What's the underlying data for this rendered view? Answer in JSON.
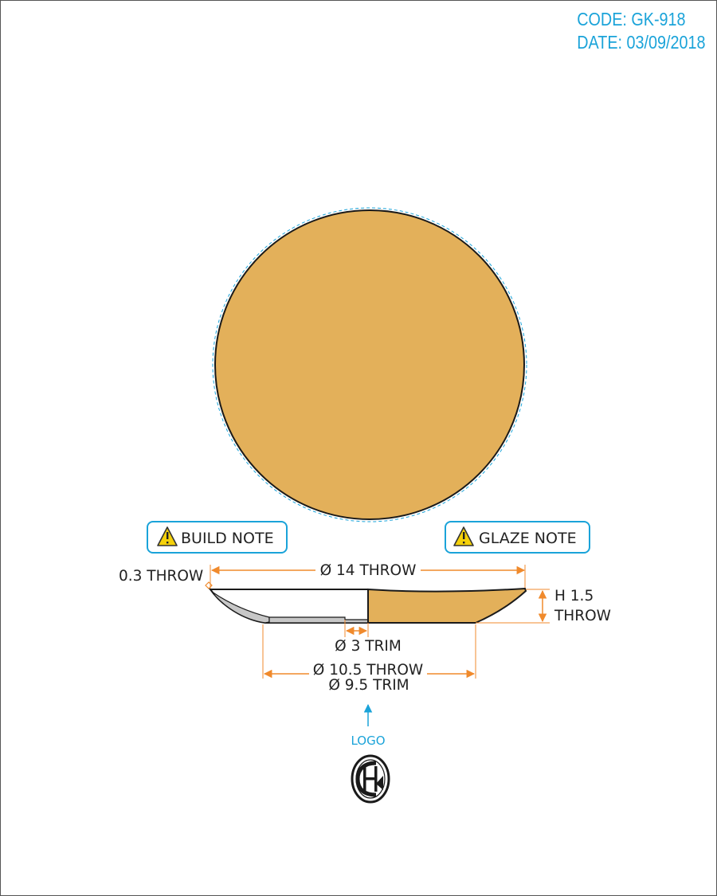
{
  "header": {
    "code": "CODE: GK-918",
    "date": "DATE: 03/09/2018"
  },
  "notes": {
    "build": "BUILD NOTE",
    "glaze": "GLAZE NOTE"
  },
  "dimensions": {
    "rim_thickness": "0.3 THROW",
    "outer_diameter": "Ø 14 THROW",
    "height_line1": "H 1.5",
    "height_line2": "THROW",
    "inner_trim": "Ø 3 TRIM",
    "foot_throw": "Ø 10.5 THROW",
    "foot_trim": "Ø 9.5 TRIM"
  },
  "logo": {
    "label": "LOGO",
    "mark": "logo-monogram-icon"
  },
  "colors": {
    "glaze": "#e3b05a",
    "accent_blue": "#1aa3d9",
    "dimension_orange": "#f08a2c",
    "outline": "#1a1a1a",
    "warning_yellow": "#f5d10a"
  }
}
